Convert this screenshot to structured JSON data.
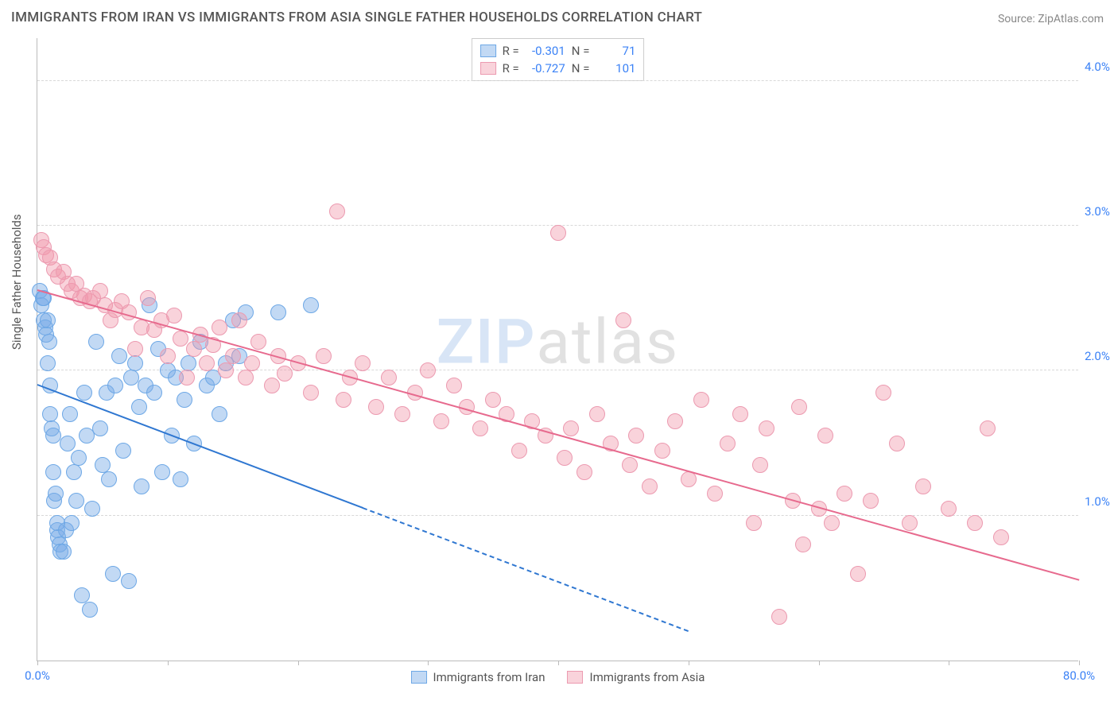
{
  "title": "IMMIGRANTS FROM IRAN VS IMMIGRANTS FROM ASIA SINGLE FATHER HOUSEHOLDS CORRELATION CHART",
  "source_label": "Source: ZipAtlas.com",
  "y_axis_label": "Single Father Households",
  "watermark": {
    "left": "ZIP",
    "right": "atlas"
  },
  "chart": {
    "type": "scatter",
    "x_domain": [
      0,
      80
    ],
    "y_domain": [
      0,
      4.3
    ],
    "x_ticks": [
      0,
      10,
      20,
      30,
      40,
      50,
      60,
      70,
      80
    ],
    "x_tick_labels": {
      "0": "0.0%",
      "80": "80.0%"
    },
    "y_gridlines": [
      1.0,
      2.0,
      3.0,
      4.0
    ],
    "y_tick_labels": {
      "1.0": "1.0%",
      "2.0": "2.0%",
      "3.0": "3.0%",
      "4.0": "4.0%"
    },
    "background": "#ffffff",
    "grid_color": "#d8d8d8",
    "axis_color": "#bbbbbb"
  },
  "series": [
    {
      "name": "Immigrants from Iran",
      "fill": "rgba(120,170,230,0.45)",
      "stroke": "#6ea8e6",
      "line_color": "#2f77d1",
      "dot_radius": 10,
      "R": "-0.301",
      "N": "71",
      "trend": {
        "x1": 0,
        "y1": 1.9,
        "x2": 25,
        "y2": 1.05,
        "extend_to_x": 50,
        "extend_to_y": 0.2
      },
      "points": [
        [
          0.2,
          2.55
        ],
        [
          0.3,
          2.45
        ],
        [
          0.4,
          2.5
        ],
        [
          0.5,
          2.5
        ],
        [
          0.5,
          2.35
        ],
        [
          0.6,
          2.3
        ],
        [
          0.7,
          2.25
        ],
        [
          0.8,
          2.05
        ],
        [
          0.8,
          2.35
        ],
        [
          0.9,
          2.2
        ],
        [
          1.0,
          1.9
        ],
        [
          1.0,
          1.7
        ],
        [
          1.1,
          1.6
        ],
        [
          1.2,
          1.55
        ],
        [
          1.2,
          1.3
        ],
        [
          1.3,
          1.1
        ],
        [
          1.4,
          1.15
        ],
        [
          1.5,
          0.9
        ],
        [
          1.5,
          0.95
        ],
        [
          1.6,
          0.85
        ],
        [
          1.7,
          0.8
        ],
        [
          1.8,
          0.75
        ],
        [
          2.0,
          0.75
        ],
        [
          2.2,
          0.9
        ],
        [
          2.3,
          1.5
        ],
        [
          2.5,
          1.7
        ],
        [
          2.6,
          0.95
        ],
        [
          2.8,
          1.3
        ],
        [
          3.0,
          1.1
        ],
        [
          3.2,
          1.4
        ],
        [
          3.4,
          0.45
        ],
        [
          3.6,
          1.85
        ],
        [
          3.8,
          1.55
        ],
        [
          4.0,
          0.35
        ],
        [
          4.2,
          1.05
        ],
        [
          4.5,
          2.2
        ],
        [
          4.8,
          1.6
        ],
        [
          5.0,
          1.35
        ],
        [
          5.3,
          1.85
        ],
        [
          5.5,
          1.25
        ],
        [
          5.8,
          0.6
        ],
        [
          6.0,
          1.9
        ],
        [
          6.3,
          2.1
        ],
        [
          6.6,
          1.45
        ],
        [
          7.0,
          0.55
        ],
        [
          7.2,
          1.95
        ],
        [
          7.5,
          2.05
        ],
        [
          7.8,
          1.75
        ],
        [
          8.0,
          1.2
        ],
        [
          8.3,
          1.9
        ],
        [
          8.6,
          2.45
        ],
        [
          9.0,
          1.85
        ],
        [
          9.3,
          2.15
        ],
        [
          9.6,
          1.3
        ],
        [
          10.0,
          2.0
        ],
        [
          10.3,
          1.55
        ],
        [
          10.6,
          1.95
        ],
        [
          11.0,
          1.25
        ],
        [
          11.3,
          1.8
        ],
        [
          11.6,
          2.05
        ],
        [
          12.0,
          1.5
        ],
        [
          12.5,
          2.2
        ],
        [
          13.0,
          1.9
        ],
        [
          13.5,
          1.95
        ],
        [
          14.0,
          1.7
        ],
        [
          14.5,
          2.05
        ],
        [
          15.0,
          2.35
        ],
        [
          15.5,
          2.1
        ],
        [
          16.0,
          2.4
        ],
        [
          18.5,
          2.4
        ],
        [
          21.0,
          2.45
        ]
      ]
    },
    {
      "name": "Immigrants from Asia",
      "fill": "rgba(240,150,170,0.42)",
      "stroke": "#ec9ab0",
      "line_color": "#e76a8e",
      "dot_radius": 10,
      "R": "-0.727",
      "N": "101",
      "trend": {
        "x1": 0,
        "y1": 2.55,
        "x2": 80,
        "y2": 0.55
      },
      "points": [
        [
          0.3,
          2.9
        ],
        [
          0.5,
          2.85
        ],
        [
          0.7,
          2.8
        ],
        [
          1.0,
          2.78
        ],
        [
          1.3,
          2.7
        ],
        [
          1.6,
          2.65
        ],
        [
          2.0,
          2.68
        ],
        [
          2.3,
          2.6
        ],
        [
          2.6,
          2.55
        ],
        [
          3.0,
          2.6
        ],
        [
          3.3,
          2.5
        ],
        [
          3.6,
          2.52
        ],
        [
          4.0,
          2.48
        ],
        [
          4.3,
          2.5
        ],
        [
          4.8,
          2.55
        ],
        [
          5.2,
          2.45
        ],
        [
          5.6,
          2.35
        ],
        [
          6.0,
          2.42
        ],
        [
          6.5,
          2.48
        ],
        [
          7.0,
          2.4
        ],
        [
          7.5,
          2.15
        ],
        [
          8.0,
          2.3
        ],
        [
          8.5,
          2.5
        ],
        [
          9.0,
          2.28
        ],
        [
          9.5,
          2.35
        ],
        [
          10.0,
          2.1
        ],
        [
          10.5,
          2.38
        ],
        [
          11.0,
          2.22
        ],
        [
          11.5,
          1.95
        ],
        [
          12.0,
          2.15
        ],
        [
          12.5,
          2.25
        ],
        [
          13.0,
          2.05
        ],
        [
          13.5,
          2.18
        ],
        [
          14.0,
          2.3
        ],
        [
          14.5,
          2.0
        ],
        [
          15.0,
          2.1
        ],
        [
          15.5,
          2.35
        ],
        [
          16.0,
          1.95
        ],
        [
          16.5,
          2.05
        ],
        [
          17.0,
          2.2
        ],
        [
          18.0,
          1.9
        ],
        [
          18.5,
          2.1
        ],
        [
          19.0,
          1.98
        ],
        [
          20.0,
          2.05
        ],
        [
          21.0,
          1.85
        ],
        [
          22.0,
          2.1
        ],
        [
          23.0,
          3.1
        ],
        [
          23.5,
          1.8
        ],
        [
          24.0,
          1.95
        ],
        [
          25.0,
          2.05
        ],
        [
          26.0,
          1.75
        ],
        [
          27.0,
          1.95
        ],
        [
          28.0,
          1.7
        ],
        [
          29.0,
          1.85
        ],
        [
          30.0,
          2.0
        ],
        [
          31.0,
          1.65
        ],
        [
          32.0,
          1.9
        ],
        [
          33.0,
          1.75
        ],
        [
          34.0,
          1.6
        ],
        [
          35.0,
          1.8
        ],
        [
          36.0,
          1.7
        ],
        [
          37.0,
          1.45
        ],
        [
          38.0,
          1.65
        ],
        [
          39.0,
          1.55
        ],
        [
          40.0,
          2.95
        ],
        [
          40.5,
          1.4
        ],
        [
          41.0,
          1.6
        ],
        [
          42.0,
          1.3
        ],
        [
          43.0,
          1.7
        ],
        [
          44.0,
          1.5
        ],
        [
          45.0,
          2.35
        ],
        [
          45.5,
          1.35
        ],
        [
          46.0,
          1.55
        ],
        [
          47.0,
          1.2
        ],
        [
          48.0,
          1.45
        ],
        [
          49.0,
          1.65
        ],
        [
          50.0,
          1.25
        ],
        [
          51.0,
          1.8
        ],
        [
          52.0,
          1.15
        ],
        [
          53.0,
          1.5
        ],
        [
          54.0,
          1.7
        ],
        [
          55.0,
          0.95
        ],
        [
          55.5,
          1.35
        ],
        [
          56.0,
          1.6
        ],
        [
          57.0,
          0.3
        ],
        [
          58.0,
          1.1
        ],
        [
          58.5,
          1.75
        ],
        [
          58.8,
          0.8
        ],
        [
          60.0,
          1.05
        ],
        [
          60.5,
          1.55
        ],
        [
          61.0,
          0.95
        ],
        [
          62.0,
          1.15
        ],
        [
          63.0,
          0.6
        ],
        [
          64.0,
          1.1
        ],
        [
          65.0,
          1.85
        ],
        [
          66.0,
          1.5
        ],
        [
          67.0,
          0.95
        ],
        [
          68.0,
          1.2
        ],
        [
          70.0,
          1.05
        ],
        [
          72.0,
          0.95
        ],
        [
          73.0,
          1.6
        ],
        [
          74.0,
          0.85
        ]
      ]
    }
  ],
  "legend_top_labels": {
    "R": "R =",
    "N": "N ="
  },
  "legend_bottom": [
    {
      "label": "Immigrants from Iran",
      "fill": "rgba(120,170,230,0.45)",
      "stroke": "#6ea8e6"
    },
    {
      "label": "Immigrants from Asia",
      "fill": "rgba(240,150,170,0.42)",
      "stroke": "#ec9ab0"
    }
  ]
}
